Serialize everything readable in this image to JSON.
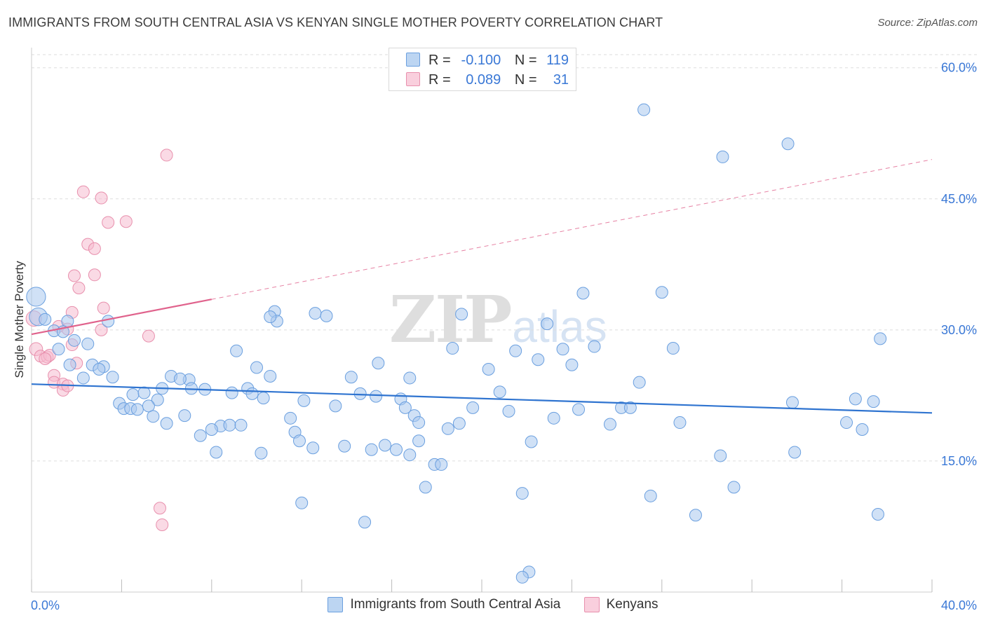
{
  "header": {
    "title": "IMMIGRANTS FROM SOUTH CENTRAL ASIA VS KENYAN SINGLE MOTHER POVERTY CORRELATION CHART",
    "source": "Source: ZipAtlas.com"
  },
  "legend": {
    "row1": {
      "r_label": "R =",
      "r_value": "-0.100",
      "n_label": "N =",
      "n_value": "119"
    },
    "row2": {
      "r_label": "R =",
      "r_value": "0.089",
      "n_label": "N =",
      "n_value": "31"
    }
  },
  "watermark": {
    "zip": "ZIP",
    "atlas": "atlas"
  },
  "colors": {
    "blue_fill": "#a9c8ee",
    "blue_stroke": "#6a9fdf",
    "blue_line": "#2f74d0",
    "pink_fill": "#f6bcd0",
    "pink_stroke": "#e890ad",
    "pink_line": "#e0628c",
    "grid": "#dddddd",
    "tick_text": "#3a78d6"
  },
  "chart_data": {
    "type": "scatter",
    "title": "IMMIGRANTS FROM SOUTH CENTRAL ASIA VS KENYAN SINGLE MOTHER POVERTY CORRELATION CHART",
    "xlabel": "",
    "ylabel": "Single Mother Poverty",
    "xlim": [
      0,
      40
    ],
    "ylim": [
      0,
      61.5
    ],
    "x_tick_labels": [
      "0.0%",
      "40.0%"
    ],
    "y_ticks": [
      15,
      30,
      45,
      60
    ],
    "y_tick_labels": [
      "15.0%",
      "30.0%",
      "45.0%",
      "60.0%"
    ],
    "grid": true,
    "legend_position": "top-center",
    "series": [
      {
        "name": "Immigrants from South Central Asia",
        "color": "#6a9fdf",
        "R": -0.1,
        "N": 119,
        "trend": {
          "x": [
            0,
            40
          ],
          "y": [
            23.8,
            20.5
          ]
        },
        "points": [
          [
            0.2,
            33.8,
            1.6
          ],
          [
            0.3,
            31.5,
            1.5
          ],
          [
            0.6,
            31.2,
            1.0
          ],
          [
            1.6,
            31.0,
            1.0
          ],
          [
            1.0,
            29.9,
            1.0
          ],
          [
            1.4,
            29.8,
            1.0
          ],
          [
            1.9,
            28.8,
            1.0
          ],
          [
            1.2,
            27.8,
            1.0
          ],
          [
            2.5,
            28.4,
            1.0
          ],
          [
            1.7,
            26.0,
            1.0
          ],
          [
            2.7,
            26.0,
            1.0
          ],
          [
            3.2,
            25.8,
            1.0
          ],
          [
            3.0,
            25.5,
            1.0
          ],
          [
            2.3,
            24.5,
            1.0
          ],
          [
            3.6,
            24.6,
            1.0
          ],
          [
            3.4,
            31.0,
            1.0
          ],
          [
            6.2,
            24.7,
            1.0
          ],
          [
            7.0,
            24.3,
            1.0
          ],
          [
            7.1,
            23.3,
            1.0
          ],
          [
            5.8,
            23.3,
            1.0
          ],
          [
            6.6,
            24.4,
            1.0
          ],
          [
            7.7,
            23.2,
            1.0
          ],
          [
            4.5,
            22.6,
            1.0
          ],
          [
            5.0,
            22.8,
            1.0
          ],
          [
            5.6,
            22.0,
            1.0
          ],
          [
            3.9,
            21.6,
            1.0
          ],
          [
            4.1,
            21.0,
            1.0
          ],
          [
            4.4,
            21.0,
            1.0
          ],
          [
            4.7,
            20.9,
            1.0
          ],
          [
            5.2,
            21.3,
            1.0
          ],
          [
            5.4,
            20.1,
            1.0
          ],
          [
            6.0,
            19.3,
            1.0
          ],
          [
            6.8,
            20.2,
            1.0
          ],
          [
            8.9,
            22.8,
            1.0
          ],
          [
            9.6,
            23.3,
            1.0
          ],
          [
            9.8,
            22.7,
            1.0
          ],
          [
            10.3,
            22.2,
            1.0
          ],
          [
            9.1,
            27.6,
            1.0
          ],
          [
            10.0,
            25.7,
            1.0
          ],
          [
            10.6,
            24.7,
            1.0
          ],
          [
            10.8,
            32.1,
            1.0
          ],
          [
            10.9,
            31.0,
            1.0
          ],
          [
            10.6,
            31.5,
            1.0
          ],
          [
            12.6,
            31.9,
            1.0
          ],
          [
            13.1,
            31.6,
            1.0
          ],
          [
            11.5,
            19.9,
            1.0
          ],
          [
            11.7,
            18.3,
            1.0
          ],
          [
            11.9,
            17.3,
            1.0
          ],
          [
            12.1,
            21.9,
            1.0
          ],
          [
            8.4,
            19.0,
            1.0
          ],
          [
            8.0,
            18.6,
            1.0
          ],
          [
            7.5,
            17.9,
            1.0
          ],
          [
            8.8,
            19.1,
            1.0
          ],
          [
            9.3,
            19.1,
            1.0
          ],
          [
            8.2,
            16.0,
            1.0
          ],
          [
            10.2,
            15.9,
            1.0
          ],
          [
            12.5,
            16.5,
            1.0
          ],
          [
            13.5,
            21.3,
            1.0
          ],
          [
            13.9,
            16.7,
            1.0
          ],
          [
            14.2,
            24.6,
            1.0
          ],
          [
            14.6,
            22.7,
            1.0
          ],
          [
            12.0,
            10.2,
            1.0
          ],
          [
            14.8,
            8.0,
            1.0
          ],
          [
            15.3,
            22.4,
            1.0
          ],
          [
            15.1,
            16.3,
            1.0
          ],
          [
            15.7,
            16.8,
            1.0
          ],
          [
            15.4,
            26.2,
            1.0
          ],
          [
            16.4,
            22.1,
            1.0
          ],
          [
            16.2,
            16.3,
            1.0
          ],
          [
            16.8,
            24.5,
            1.0
          ],
          [
            16.8,
            15.7,
            1.0
          ],
          [
            17.2,
            17.3,
            1.0
          ],
          [
            16.6,
            21.1,
            1.0
          ],
          [
            17.0,
            20.2,
            1.0
          ],
          [
            17.2,
            19.4,
            1.0
          ],
          [
            17.5,
            12.0,
            1.0
          ],
          [
            17.9,
            14.6,
            1.0
          ],
          [
            18.2,
            14.6,
            1.0
          ],
          [
            18.5,
            18.7,
            1.0
          ],
          [
            18.7,
            27.9,
            1.0
          ],
          [
            19.0,
            19.3,
            1.0
          ],
          [
            19.1,
            31.8,
            1.0
          ],
          [
            19.6,
            21.1,
            1.0
          ],
          [
            20.3,
            25.5,
            1.0
          ],
          [
            20.8,
            22.9,
            1.0
          ],
          [
            21.2,
            20.7,
            1.0
          ],
          [
            21.8,
            11.3,
            1.0
          ],
          [
            21.5,
            27.6,
            1.0
          ],
          [
            22.2,
            17.2,
            1.0
          ],
          [
            22.5,
            26.6,
            1.0
          ],
          [
            22.9,
            30.7,
            1.0
          ],
          [
            23.2,
            19.9,
            1.0
          ],
          [
            23.6,
            27.8,
            1.0
          ],
          [
            24.0,
            26.0,
            1.0
          ],
          [
            24.3,
            20.9,
            1.0
          ],
          [
            25.0,
            28.1,
            1.0
          ],
          [
            22.1,
            2.3,
            1.0
          ],
          [
            21.8,
            1.7,
            1.0
          ],
          [
            24.5,
            34.2,
            1.0
          ],
          [
            25.7,
            19.2,
            1.0
          ],
          [
            26.2,
            21.1,
            1.0
          ],
          [
            26.6,
            21.1,
            1.0
          ],
          [
            27.0,
            24.0,
            1.0
          ],
          [
            27.5,
            11.0,
            1.0
          ],
          [
            28.0,
            34.3,
            1.0
          ],
          [
            28.5,
            27.9,
            1.0
          ],
          [
            28.8,
            19.4,
            1.0
          ],
          [
            29.5,
            8.8,
            1.0
          ],
          [
            30.6,
            15.6,
            1.0
          ],
          [
            31.2,
            12.0,
            1.0
          ],
          [
            33.8,
            21.7,
            1.0
          ],
          [
            33.9,
            16.0,
            1.0
          ],
          [
            27.2,
            55.2,
            1.0
          ],
          [
            30.7,
            49.8,
            1.0
          ],
          [
            33.6,
            51.3,
            1.0
          ],
          [
            36.2,
            19.4,
            1.0
          ],
          [
            36.9,
            18.6,
            1.0
          ],
          [
            37.4,
            21.8,
            1.0
          ],
          [
            37.7,
            29.0,
            1.0
          ],
          [
            37.6,
            8.9,
            1.0
          ],
          [
            36.6,
            22.1,
            1.0
          ]
        ]
      },
      {
        "name": "Kenyans",
        "color": "#e890ad",
        "R": 0.089,
        "N": 31,
        "trend": {
          "x": [
            0,
            8
          ],
          "y": [
            29.5,
            33.5
          ]
        },
        "trend_extended": {
          "x": [
            8,
            40
          ],
          "y": [
            33.5,
            49.5
          ]
        },
        "points": [
          [
            0.1,
            31.3,
            1.3
          ],
          [
            0.2,
            27.8,
            1.1
          ],
          [
            0.4,
            27.0,
            1.0
          ],
          [
            0.7,
            26.9,
            1.0
          ],
          [
            0.8,
            27.1,
            1.0
          ],
          [
            0.6,
            26.7,
            1.0
          ],
          [
            1.2,
            30.4,
            1.0
          ],
          [
            1.6,
            30.1,
            1.0
          ],
          [
            1.8,
            28.3,
            1.0
          ],
          [
            1.8,
            32.0,
            1.0
          ],
          [
            2.0,
            26.2,
            1.0
          ],
          [
            1.9,
            36.2,
            1.0
          ],
          [
            2.1,
            34.8,
            1.0
          ],
          [
            2.5,
            39.8,
            1.0
          ],
          [
            2.8,
            39.3,
            1.0
          ],
          [
            2.8,
            36.3,
            1.0
          ],
          [
            3.1,
            30.0,
            1.0
          ],
          [
            3.2,
            32.5,
            1.0
          ],
          [
            2.3,
            45.8,
            1.0
          ],
          [
            3.1,
            45.1,
            1.0
          ],
          [
            3.4,
            42.3,
            1.0
          ],
          [
            4.2,
            42.4,
            1.0
          ],
          [
            6.0,
            50.0,
            1.0
          ],
          [
            5.2,
            29.3,
            1.0
          ],
          [
            1.0,
            24.8,
            1.0
          ],
          [
            1.0,
            24.0,
            1.0
          ],
          [
            1.4,
            23.8,
            1.0
          ],
          [
            1.4,
            23.1,
            1.0
          ],
          [
            1.6,
            23.6,
            1.0
          ],
          [
            5.7,
            9.6,
            1.0
          ],
          [
            5.8,
            7.7,
            1.0
          ]
        ]
      }
    ]
  }
}
